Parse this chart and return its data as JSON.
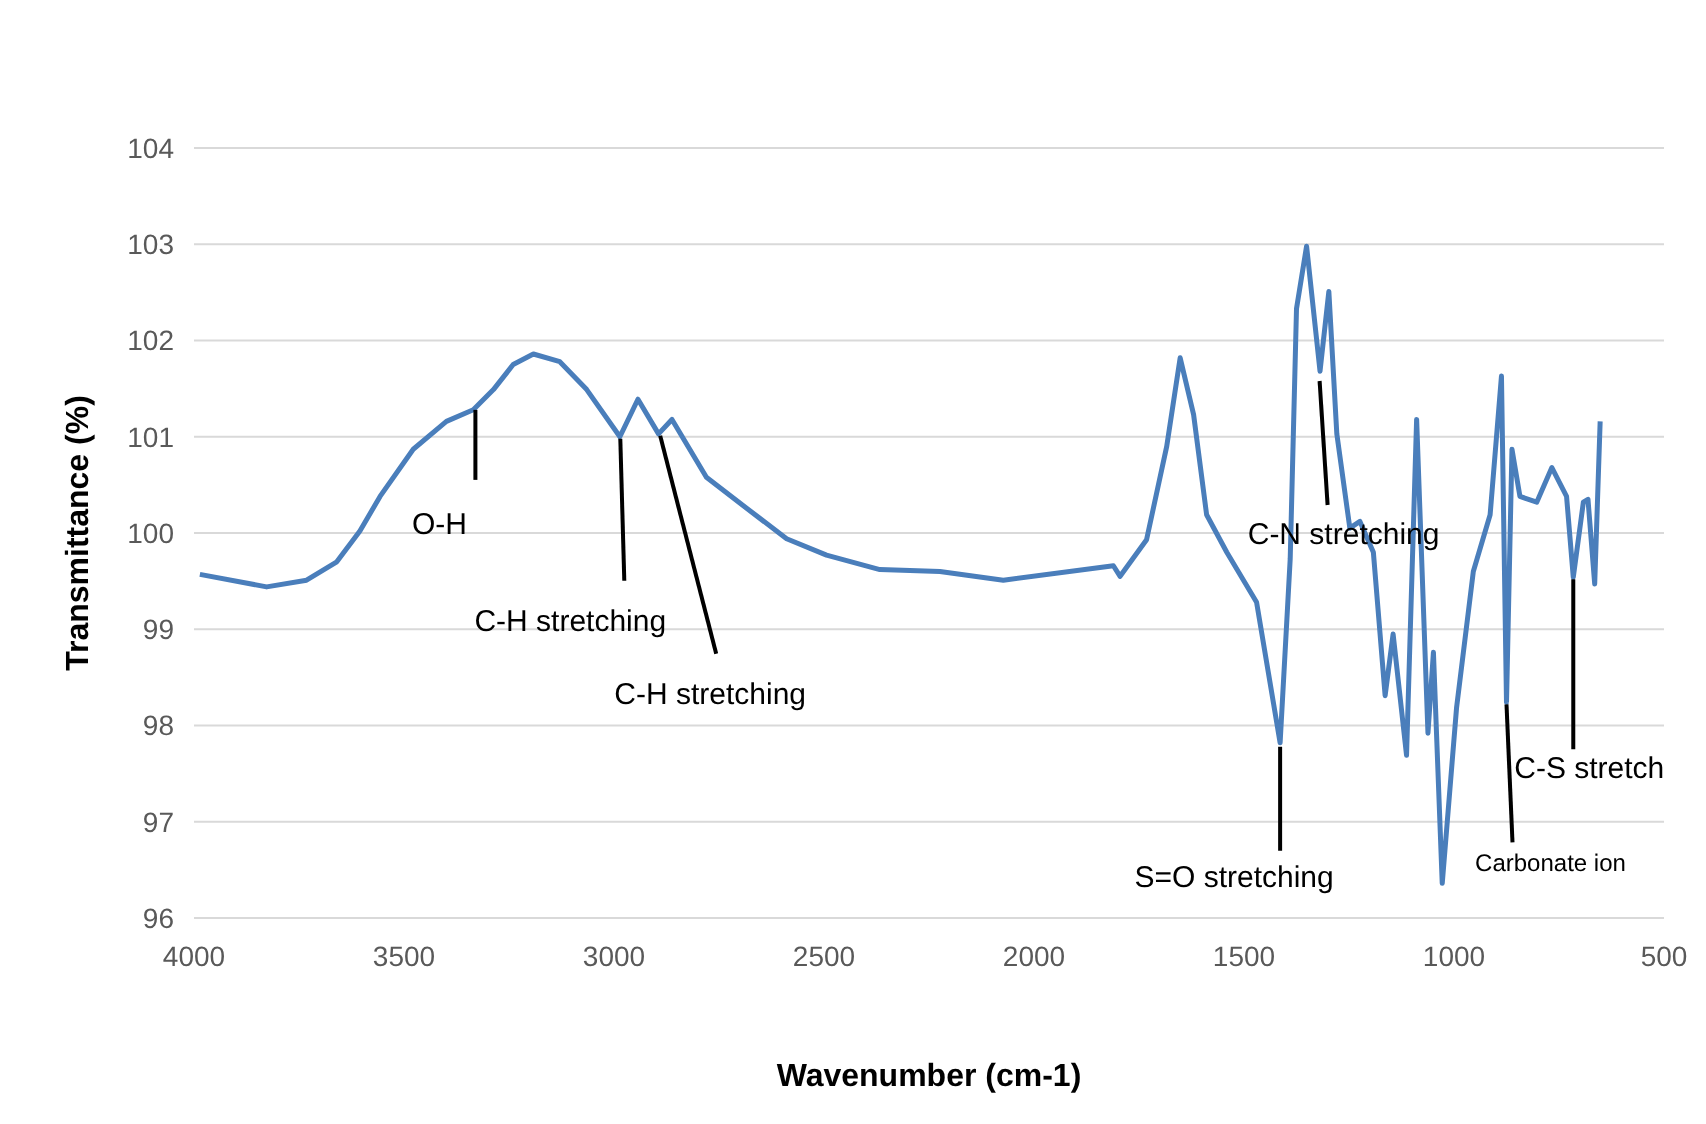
{
  "chart_data": {
    "type": "line",
    "xlabel": "Wavenumber (cm-1)",
    "ylabel": "Transmittance (%)",
    "xlim": [
      4000,
      500
    ],
    "xticks": [
      4000,
      3500,
      3000,
      2500,
      2000,
      1500,
      1000,
      500
    ],
    "ylim": [
      96,
      104
    ],
    "yticks": [
      96,
      97,
      98,
      99,
      100,
      101,
      102,
      103,
      104
    ],
    "grid": "y",
    "marker": "none",
    "line_style": "solid",
    "series": [
      {
        "color": "#4a7ebb",
        "x": [
          3986,
          3827,
          3732,
          3660,
          3605,
          3557,
          3478,
          3399,
          3335,
          3287,
          3240,
          3192,
          3129,
          3065,
          2986,
          2943,
          2894,
          2862,
          2780,
          2685,
          2589,
          2494,
          2367,
          2224,
          2073,
          1811,
          1795,
          1732,
          1684,
          1652,
          1620,
          1589,
          1541,
          1470,
          1414,
          1390,
          1375,
          1351,
          1319,
          1298,
          1279,
          1248,
          1224,
          1192,
          1164,
          1145,
          1113,
          1089,
          1062,
          1049,
          1028,
          994,
          954,
          914,
          887,
          875,
          862,
          843,
          803,
          767,
          732,
          716,
          692,
          681,
          665,
          652
        ],
        "values": [
          99.57,
          99.44,
          99.51,
          99.7,
          100.02,
          100.38,
          100.87,
          101.16,
          101.28,
          101.49,
          101.75,
          101.86,
          101.78,
          101.49,
          101.0,
          101.39,
          101.03,
          101.18,
          100.58,
          100.26,
          99.94,
          99.77,
          99.62,
          99.6,
          99.51,
          99.66,
          99.55,
          99.93,
          100.9,
          101.82,
          101.23,
          100.19,
          99.8,
          99.28,
          97.82,
          99.73,
          102.33,
          102.98,
          101.68,
          102.51,
          101.03,
          100.05,
          100.12,
          99.8,
          98.31,
          98.95,
          97.69,
          101.18,
          97.92,
          98.76,
          96.36,
          98.18,
          99.6,
          100.19,
          101.63,
          98.24,
          100.87,
          100.38,
          100.32,
          100.68,
          100.38,
          99.54,
          100.32,
          100.35,
          99.47,
          101.16
        ]
      }
    ],
    "annotations": [
      {
        "text": "O-H",
        "x": 3330,
        "y": 101.3
      },
      {
        "text": "C-H stretching",
        "x": 2985,
        "y": 101.0
      },
      {
        "text": "C-H stretching",
        "x": 2890,
        "y": 101.03
      },
      {
        "text": "S=O stretching",
        "x": 1414,
        "y": 97.8
      },
      {
        "text": "C-N stretching",
        "x": 1320,
        "y": 101.6
      },
      {
        "text": "Carbonate ion",
        "x": 875,
        "y": 98.24
      },
      {
        "text": "C-S stretch",
        "x": 716,
        "y": 99.54
      }
    ]
  }
}
